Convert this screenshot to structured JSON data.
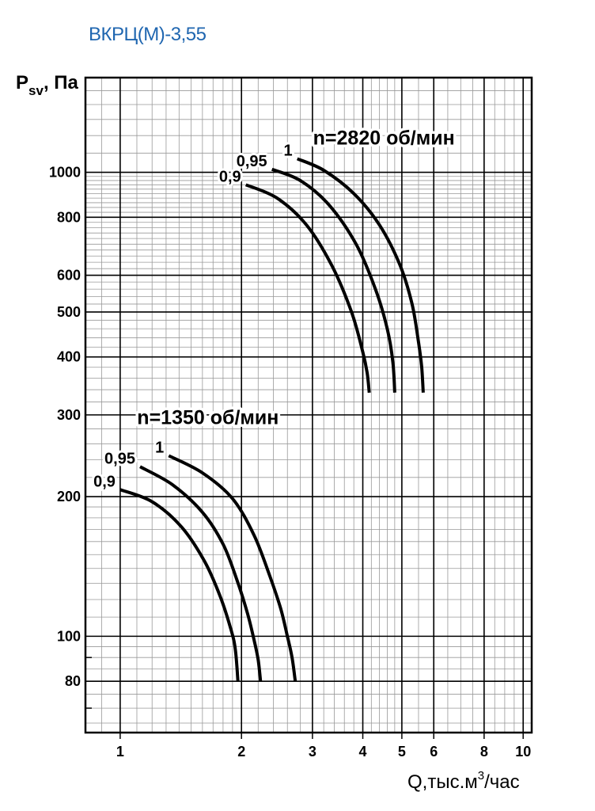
{
  "title": "ВКРЦ(М)-3,55",
  "chart_data": {
    "type": "line",
    "x_scale": "log",
    "y_scale": "log",
    "xlim": [
      0.82,
      10.5
    ],
    "ylim": [
      62,
      1600
    ],
    "grid": true,
    "ylabel": {
      "main": "P",
      "sub": "sv",
      "unit": ", Па"
    },
    "xlabel": {
      "main": "Q,тыс.м",
      "sup": "3",
      "unit": "/час"
    },
    "x_ticks": [
      1,
      2,
      3,
      4,
      5,
      6,
      8,
      10
    ],
    "x_tick_labels": [
      "1",
      "2",
      "3",
      "4",
      "5",
      "6",
      "8",
      "10"
    ],
    "y_ticks": [
      80,
      100,
      200,
      300,
      400,
      500,
      600,
      800,
      1000
    ],
    "y_tick_labels": [
      "80",
      "100",
      "200",
      "300",
      "400",
      "500",
      "600",
      "800",
      "1000"
    ],
    "groups": [
      {
        "speed_label": "n=1350 об/мин",
        "series": [
          {
            "name": "1",
            "points": [
              [
                1.32,
                245
              ],
              [
                1.6,
                225
              ],
              [
                1.9,
                198
              ],
              [
                2.15,
                165
              ],
              [
                2.35,
                135
              ],
              [
                2.5,
                115
              ],
              [
                2.6,
                100
              ],
              [
                2.67,
                90
              ],
              [
                2.72,
                80
              ]
            ]
          },
          {
            "name": "0,95",
            "points": [
              [
                1.12,
                232
              ],
              [
                1.35,
                212
              ],
              [
                1.6,
                185
              ],
              [
                1.8,
                158
              ],
              [
                1.95,
                132
              ],
              [
                2.07,
                112
              ],
              [
                2.15,
                98
              ],
              [
                2.2,
                89
              ],
              [
                2.23,
                80
              ]
            ]
          },
          {
            "name": "0,9",
            "points": [
              [
                1.0,
                207
              ],
              [
                1.2,
                195
              ],
              [
                1.42,
                172
              ],
              [
                1.62,
                145
              ],
              [
                1.77,
                122
              ],
              [
                1.88,
                104
              ],
              [
                1.93,
                94
              ],
              [
                1.96,
                80
              ]
            ]
          }
        ]
      },
      {
        "speed_label": "n=2820 об/мин",
        "series": [
          {
            "name": "1",
            "points": [
              [
                2.75,
                1070
              ],
              [
                3.2,
                1010
              ],
              [
                3.8,
                900
              ],
              [
                4.4,
                770
              ],
              [
                4.95,
                630
              ],
              [
                5.3,
                520
              ],
              [
                5.5,
                430
              ],
              [
                5.6,
                380
              ],
              [
                5.65,
                335
              ]
            ]
          },
          {
            "name": "0,95",
            "points": [
              [
                2.38,
                1015
              ],
              [
                2.8,
                960
              ],
              [
                3.3,
                850
              ],
              [
                3.85,
                700
              ],
              [
                4.3,
                560
              ],
              [
                4.6,
                460
              ],
              [
                4.75,
                390
              ],
              [
                4.8,
                335
              ]
            ]
          },
          {
            "name": "0,9",
            "points": [
              [
                2.05,
                940
              ],
              [
                2.45,
                880
              ],
              [
                2.9,
                770
              ],
              [
                3.35,
                630
              ],
              [
                3.75,
                500
              ],
              [
                4.0,
                410
              ],
              [
                4.1,
                370
              ],
              [
                4.15,
                335
              ]
            ]
          }
        ]
      }
    ]
  }
}
